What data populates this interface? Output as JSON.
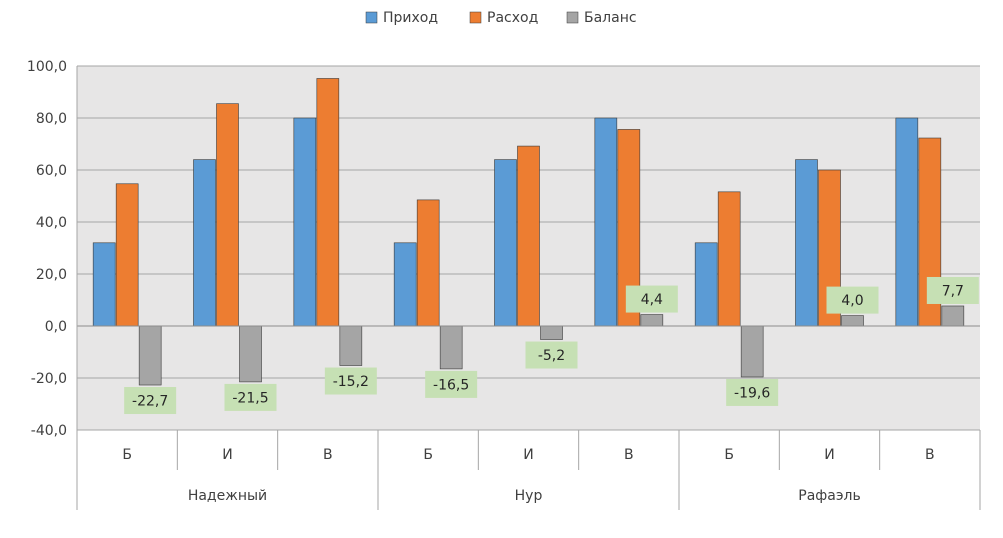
{
  "chart_data": {
    "type": "bar",
    "title": "",
    "xlabel": "",
    "ylabel": "",
    "ylim": [
      -40,
      100
    ],
    "yticks": [
      -40,
      -20,
      0,
      20,
      40,
      60,
      80,
      100
    ],
    "ytick_labels": [
      "-40,0",
      "-20,0",
      "0,0",
      "20,0",
      "40,0",
      "60,0",
      "80,0",
      "100,0"
    ],
    "grid": true,
    "legend_position": "top",
    "groups": [
      {
        "label": "Надежный",
        "categories": [
          "Б",
          "И",
          "В"
        ]
      },
      {
        "label": "Нур",
        "categories": [
          "Б",
          "И",
          "В"
        ]
      },
      {
        "label": "Рафаэль",
        "categories": [
          "Б",
          "И",
          "В"
        ]
      }
    ],
    "series": [
      {
        "name": "Приход",
        "color": "#5B9BD5",
        "values": [
          32,
          64,
          80,
          32,
          64,
          80,
          32,
          64,
          80
        ]
      },
      {
        "name": "Расход",
        "color": "#ED7D31",
        "values": [
          54.7,
          85.5,
          95.2,
          48.5,
          69.2,
          75.6,
          51.6,
          60,
          72.3
        ]
      },
      {
        "name": "Баланс",
        "color": "#A5A5A5",
        "values": [
          -22.7,
          -21.5,
          -15.2,
          -16.5,
          -5.2,
          4.4,
          -19.6,
          4.0,
          7.7
        ]
      }
    ],
    "data_labels": {
      "series": "Баланс",
      "labels": [
        "-22,7",
        "-21,5",
        "-15,2",
        "-16,5",
        "-5,2",
        "4,4",
        "-19,6",
        "4,0",
        "7,7"
      ],
      "background": "#C6E0B4"
    }
  }
}
